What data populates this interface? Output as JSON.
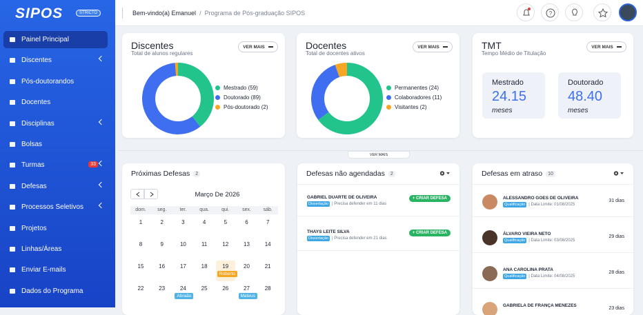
{
  "sidebar": {
    "logo": "SIPOS",
    "badge": "STRICTO",
    "menu": [
      {
        "label": "Painel Principal",
        "active": true
      },
      {
        "label": "Discentes",
        "submenu": true
      },
      {
        "label": "Pós-doutorandos"
      },
      {
        "label": "Docentes"
      },
      {
        "label": "Disciplinas",
        "submenu": true
      },
      {
        "label": "Bolsas"
      },
      {
        "label": "Turmas",
        "badge": "33",
        "submenu": true
      },
      {
        "label": "Defesas",
        "submenu": true
      },
      {
        "label": "Processos Seletivos",
        "submenu": true
      },
      {
        "label": "Projetos"
      },
      {
        "label": "Linhas/Áreas"
      },
      {
        "label": "Enviar E-mails"
      },
      {
        "label": "Dados do Programa"
      }
    ]
  },
  "topbar": {
    "greeting": "Bem-vindo(a) Emanuel",
    "separator": "/",
    "program": "Programa de Pós-graduação SIPOS"
  },
  "discentes": {
    "title": "Discentes",
    "subtitle": "Total de alunos regulares",
    "button": "VER MAIS",
    "items": [
      {
        "label": "Mestrado (59)",
        "value": 59,
        "color": "#22c48c"
      },
      {
        "label": "Doutorado (89)",
        "value": 89,
        "color": "#3f6ff0"
      },
      {
        "label": "Pós-doutorado (2)",
        "value": 2,
        "color": "#f5a623"
      }
    ]
  },
  "docentes": {
    "title": "Docentes",
    "subtitle": "Total de docentes ativos",
    "button": "VER MAIS",
    "items": [
      {
        "label": "Permanentes (24)",
        "value": 24,
        "color": "#22c48c"
      },
      {
        "label": "Colaboradores (11)",
        "value": 11,
        "color": "#3f6ff0"
      },
      {
        "label": "Visitantes (2)",
        "value": 2,
        "color": "#f5a623"
      }
    ]
  },
  "tmt": {
    "title": "TMT",
    "subtitle": "Tempo Médio de Titulação",
    "button": "VER MAIS",
    "boxes": [
      {
        "label": "Mestrado",
        "value": "24.15",
        "unit": "meses"
      },
      {
        "label": "Doutorado",
        "value": "48.40",
        "unit": "meses"
      }
    ]
  },
  "divider": "VER MAIS",
  "proximas": {
    "title": "Próximas Defesas",
    "count": "2",
    "month": "Março De 2026",
    "weekdays": [
      "dom.",
      "seg.",
      "ter.",
      "qua.",
      "qui.",
      "sex.",
      "sáb."
    ],
    "weeks": [
      [
        1,
        2,
        3,
        4,
        5,
        6,
        7
      ],
      [
        8,
        9,
        10,
        11,
        12,
        13,
        14
      ],
      [
        15,
        16,
        17,
        18,
        19,
        20,
        21
      ],
      [
        22,
        23,
        24,
        25,
        26,
        27,
        28
      ]
    ],
    "events": [
      {
        "date": 19,
        "label": "Roberto",
        "highlight": true
      },
      {
        "date": 24,
        "label": "Abraão"
      },
      {
        "date": 27,
        "label": "Mateus"
      }
    ]
  },
  "nao_agendadas": {
    "title": "Defesas não agendadas",
    "count": "2",
    "items": [
      {
        "name": "GABRIEL DUARTE DE OLIVEIRA",
        "tag": "Dissertação",
        "info": "| Precisa defender em 11 dias",
        "button": "+ CRIAR DEFESA"
      },
      {
        "name": "THAYS LEITE SILVA",
        "tag": "Dissertação",
        "info": "| Precisa defender em 21 dias",
        "button": "+ CRIAR DEFESA"
      }
    ]
  },
  "em_atraso": {
    "title": "Defesas em atraso",
    "count": "10",
    "items": [
      {
        "name": "ALESSANDRO GOES DE OLIVEIRA",
        "tag": "Qualificação",
        "info": "| Data Limite: 01/08/2025",
        "days": "31 dias"
      },
      {
        "name": "ÁLVARO VIEIRA NETO",
        "tag": "Qualificação",
        "info": "| Data Limite: 03/08/2025",
        "days": "29 dias"
      },
      {
        "name": "ANA CAROLINA PRATA",
        "tag": "Qualificação",
        "info": "| Data Limite: 04/08/2025",
        "days": "28 dias"
      },
      {
        "name": "GABRIELA DE FRANÇA MENEZES",
        "days": "23 dias"
      }
    ]
  }
}
